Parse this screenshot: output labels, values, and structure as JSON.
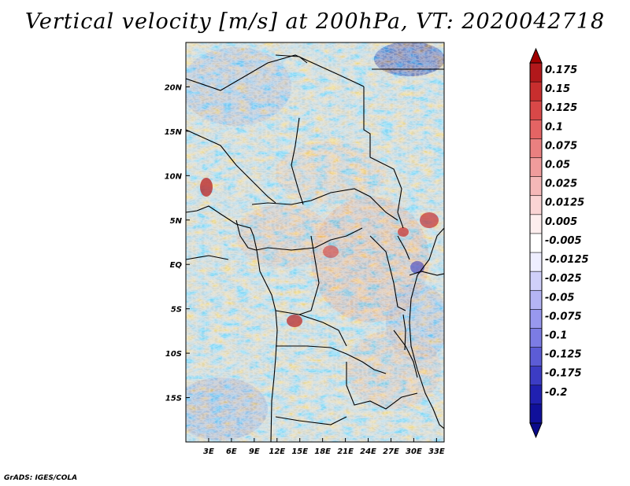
{
  "title": "Vertical velocity [m/s] at 200hPa, VT: 2020042718",
  "footer": "GrADS: IGES/COLA",
  "map": {
    "lon_range": [
      0,
      34
    ],
    "lat_range": [
      -20,
      25
    ],
    "lon_ticks": [
      {
        "v": 3,
        "label": "3E"
      },
      {
        "v": 6,
        "label": "6E"
      },
      {
        "v": 9,
        "label": "9E"
      },
      {
        "v": 12,
        "label": "12E"
      },
      {
        "v": 15,
        "label": "15E"
      },
      {
        "v": 18,
        "label": "18E"
      },
      {
        "v": 21,
        "label": "21E"
      },
      {
        "v": 24,
        "label": "24E"
      },
      {
        "v": 27,
        "label": "27E"
      },
      {
        "v": 30,
        "label": "30E"
      },
      {
        "v": 33,
        "label": "33E"
      }
    ],
    "lat_ticks": [
      {
        "v": 20,
        "label": "20N"
      },
      {
        "v": 15,
        "label": "15N"
      },
      {
        "v": 10,
        "label": "10N"
      },
      {
        "v": 5,
        "label": "5N"
      },
      {
        "v": 0,
        "label": "EQ"
      },
      {
        "v": -5,
        "label": "5S"
      },
      {
        "v": -10,
        "label": "10S"
      },
      {
        "v": -15,
        "label": "15S"
      }
    ]
  },
  "colorbar": {
    "labels": [
      "0.175",
      "0.15",
      "0.125",
      "0.1",
      "0.075",
      "0.05",
      "0.025",
      "0.0125",
      "0.005",
      "-0.005",
      "-0.0125",
      "-0.025",
      "-0.05",
      "-0.075",
      "-0.1",
      "-0.125",
      "-0.175",
      "-0.2"
    ],
    "colors": [
      "#b2181b",
      "#c82e2e",
      "#d94848",
      "#e46464",
      "#ea8080",
      "#f09c9c",
      "#f5b8b8",
      "#fad4d4",
      "#fdeeee",
      "#ffffff",
      "#eeeeff",
      "#d0d0fa",
      "#b4b4f4",
      "#9898ee",
      "#7c7ce4",
      "#5c5cd6",
      "#3c3cc4",
      "#2020b0",
      "#10109a"
    ],
    "tip_top_color": "#a00000",
    "tip_bottom_color": "#0a0a8a"
  },
  "chart_data": {
    "type": "heatmap",
    "title": "Vertical velocity [m/s] at 200hPa, VT: 2020042718",
    "variable": "Vertical velocity",
    "units": "m/s",
    "level": "200hPa",
    "valid_time": "2020042718",
    "x_axis_labels": [
      "3E",
      "6E",
      "9E",
      "12E",
      "15E",
      "18E",
      "21E",
      "24E",
      "27E",
      "30E",
      "33E"
    ],
    "y_axis_labels": [
      "20N",
      "15N",
      "10N",
      "5N",
      "EQ",
      "5S",
      "10S",
      "15S"
    ],
    "color_levels": [
      0.175,
      0.15,
      0.125,
      0.1,
      0.075,
      0.05,
      0.025,
      0.0125,
      0.005,
      -0.005,
      -0.0125,
      -0.025,
      -0.05,
      -0.075,
      -0.1,
      -0.125,
      -0.175,
      -0.2
    ]
  }
}
